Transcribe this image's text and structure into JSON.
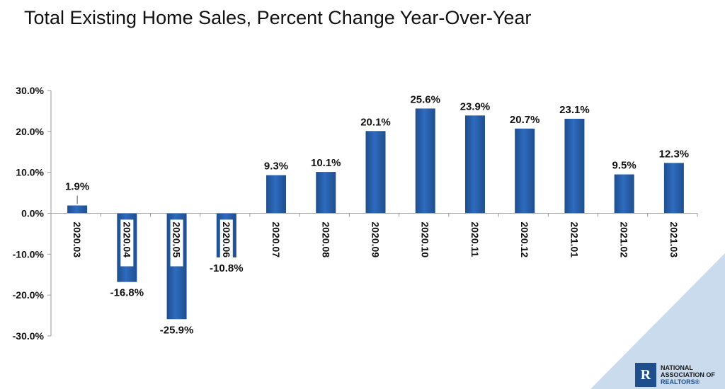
{
  "title": "Total Existing Home Sales, Percent Change Year-Over-Year",
  "logo": {
    "line1": "NATIONAL",
    "line2": "ASSOCIATION OF",
    "line3": "REALTORS®"
  },
  "colors": {
    "bar": "#2e6bbf",
    "bar_dark": "#1f4e8c",
    "corner": "#c9dbec"
  },
  "chart_data": {
    "type": "bar",
    "categories": [
      "2020.03",
      "2020.04",
      "2020.05",
      "2020.06",
      "2020.07",
      "2020.08",
      "2020.09",
      "2020.10",
      "2020.11",
      "2020.12",
      "2021.01",
      "2021.02",
      "2021.03"
    ],
    "values": [
      1.9,
      -16.8,
      -25.9,
      -10.8,
      9.3,
      10.1,
      20.1,
      25.6,
      23.9,
      20.7,
      23.1,
      9.5,
      12.3
    ],
    "data_labels": [
      "1.9%",
      "-16.8%",
      "-25.9%",
      "-10.8%",
      "9.3%",
      "10.1%",
      "20.1%",
      "25.6%",
      "23.9%",
      "20.7%",
      "23.1%",
      "9.5%",
      "12.3%"
    ],
    "y_ticks": [
      30,
      20,
      10,
      0,
      -10,
      -20,
      -30
    ],
    "y_tick_labels": [
      "30.0%",
      "20.0%",
      "10.0%",
      "0.0%",
      "-10.0%",
      "-20.0%",
      "-30.0%"
    ],
    "ylim": [
      -30,
      30
    ],
    "grid": false,
    "legend": "none"
  }
}
